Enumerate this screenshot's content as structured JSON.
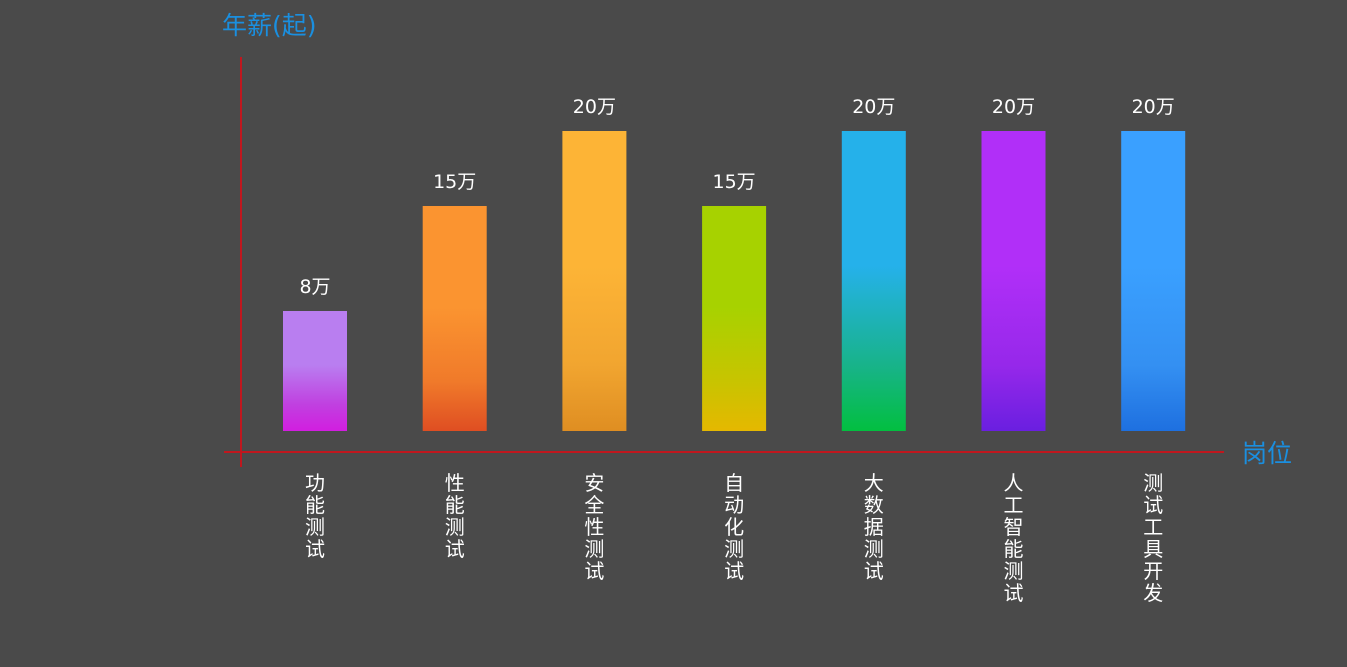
{
  "chart_data": {
    "type": "bar",
    "ylabel": "年薪(起)",
    "xlabel": "岗位",
    "ylim": [
      0,
      22
    ],
    "categories": [
      "功能测试",
      "性能测试",
      "安全性测试",
      "自动化测试",
      "大数据测试",
      "人工智能测试",
      "测试工具开发"
    ],
    "values": [
      8,
      15,
      20,
      15,
      20,
      20,
      20
    ],
    "value_labels": [
      "8万",
      "15万",
      "20万",
      "15万",
      "20万",
      "20万",
      "20万"
    ],
    "colors": [
      [
        "#b97ef0",
        "#c040e0",
        "#d21ee0"
      ],
      [
        "#fb9430",
        "#f07a2a",
        "#df4e22"
      ],
      [
        "#fdb436",
        "#f1a530",
        "#df8e22"
      ],
      [
        "#a7d200",
        "#c8c400",
        "#e5b800"
      ],
      [
        "#25b1ea",
        "#18b38a",
        "#02bf40"
      ],
      [
        "#b12ff8",
        "#9628ea",
        "#6a1fe0"
      ],
      [
        "#3aa0ff",
        "#3490f2",
        "#1e70e0"
      ]
    ],
    "axis_color": "#c0171e"
  }
}
